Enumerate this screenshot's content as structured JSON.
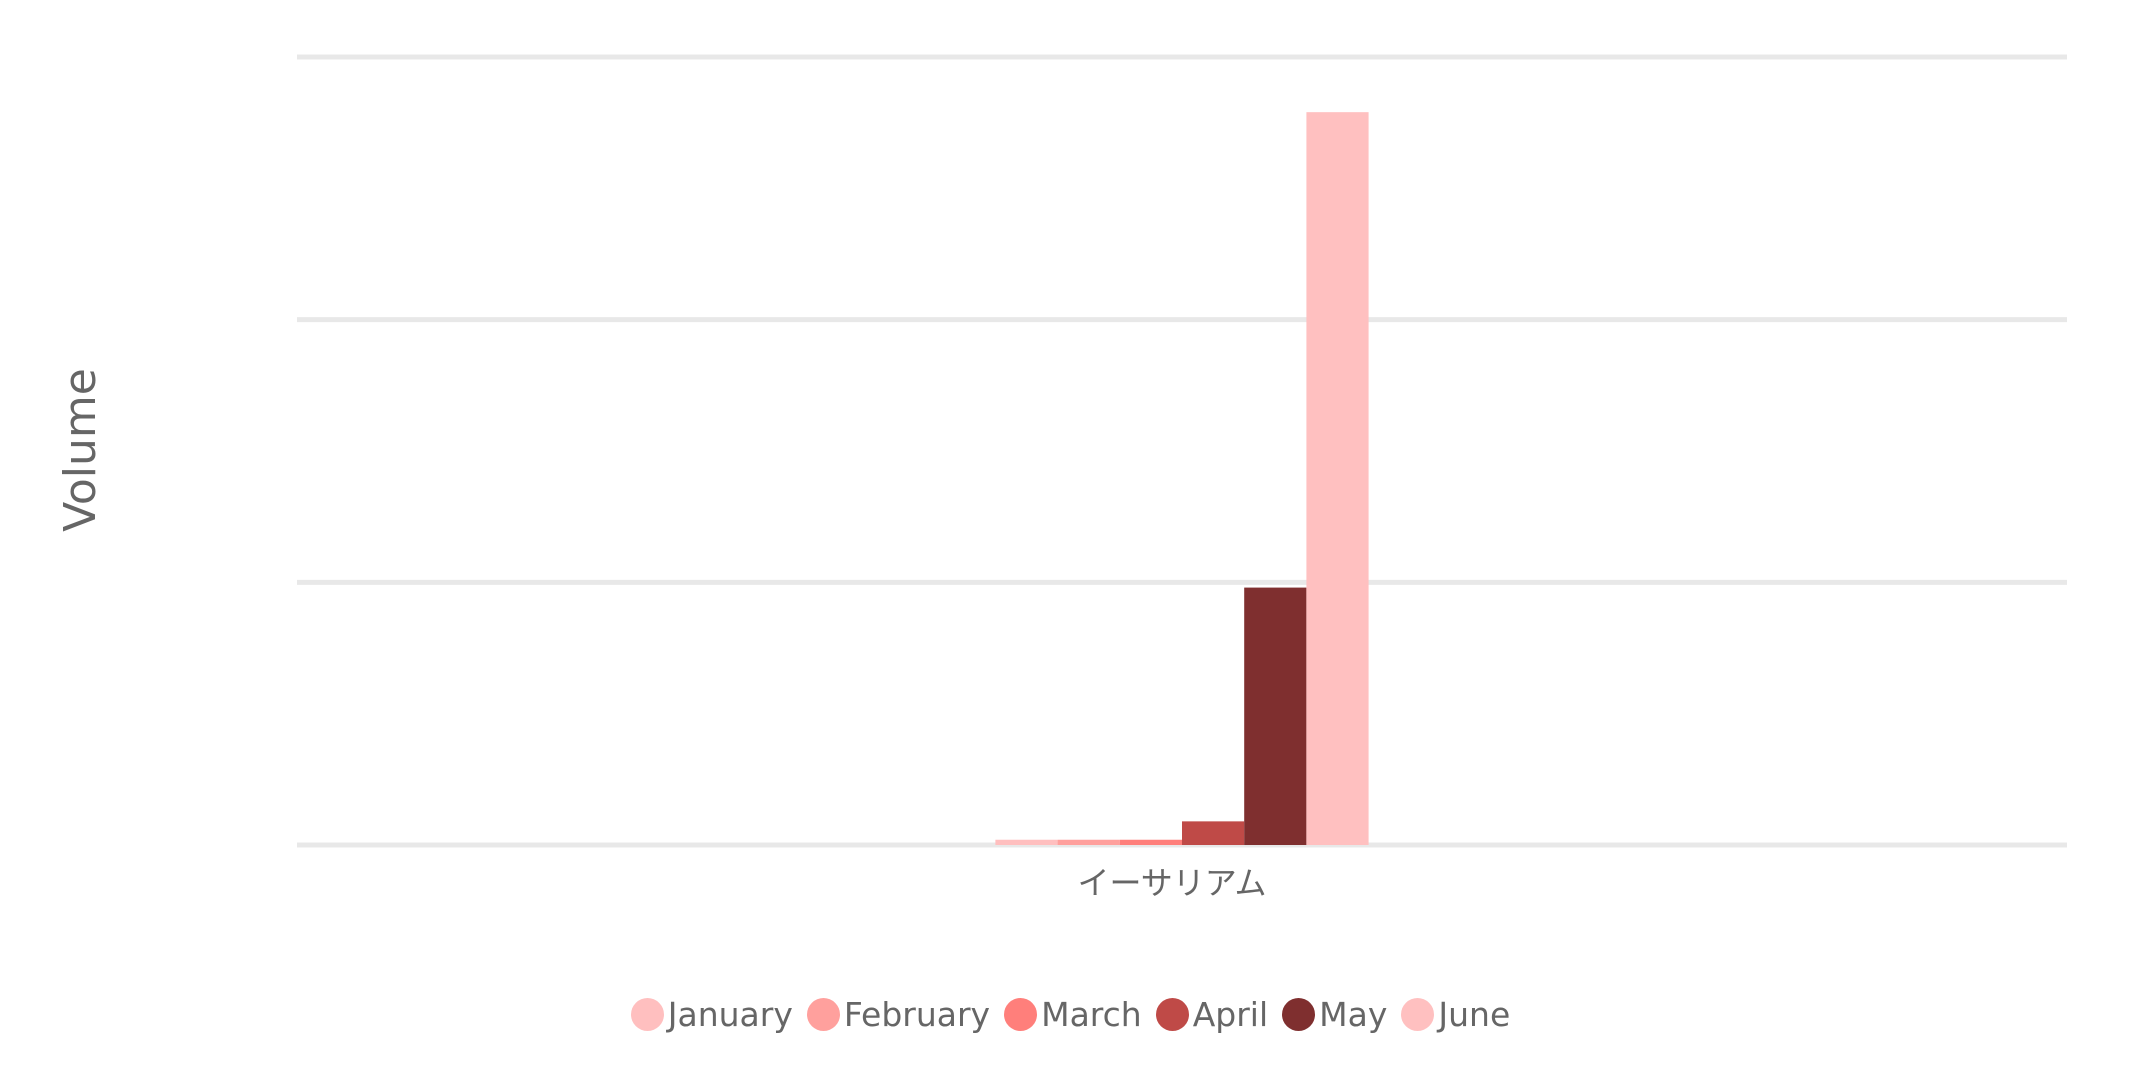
{
  "chart_data": {
    "type": "bar",
    "title": "",
    "xlabel": "",
    "ylabel": "Volume",
    "categories": [
      "イーサリアム"
    ],
    "ylim": [
      0,
      3
    ],
    "grid": true,
    "y_tick_labels_shown": false,
    "legend_position": "bottom",
    "series": [
      {
        "name": "January",
        "color": "#FFBFBF",
        "values": [
          0.02
        ]
      },
      {
        "name": "February",
        "color": "#FFA09D",
        "values": [
          0.02
        ]
      },
      {
        "name": "March",
        "color": "#FF7F7B",
        "values": [
          0.02
        ]
      },
      {
        "name": "April",
        "color": "#BF4A47",
        "values": [
          0.09
        ]
      },
      {
        "name": "May",
        "color": "#7F2F2F",
        "values": [
          0.98
        ]
      },
      {
        "name": "June",
        "color": "#FFC0C0",
        "values": [
          2.79
        ]
      }
    ]
  }
}
